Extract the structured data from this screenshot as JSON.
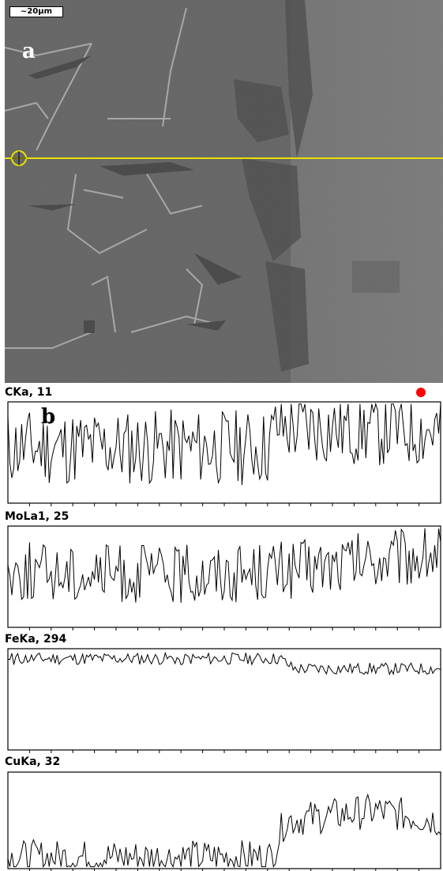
{
  "panel_a": {
    "label": "a",
    "scale_bar": "~20µm"
  },
  "panel_b": {
    "label": "b",
    "marker_color": "#ff0000"
  },
  "colors": {
    "scan_line": "#e8e000",
    "profile_line": "#000000"
  },
  "chart_data": [
    {
      "type": "line",
      "title": "CKa, 11",
      "trend": [
        [
          0,
          0.55
        ],
        [
          0.6,
          0.55
        ],
        [
          0.62,
          0.75
        ],
        [
          1.0,
          0.72
        ]
      ],
      "noise": 0.38,
      "seed": 11
    },
    {
      "type": "line",
      "title": "MoLa1, 25",
      "trend": [
        [
          0,
          0.55
        ],
        [
          0.4,
          0.52
        ],
        [
          0.7,
          0.58
        ],
        [
          1.0,
          0.72
        ]
      ],
      "noise": 0.3,
      "seed": 25
    },
    {
      "type": "line",
      "title": "FeKa, 294",
      "trend": [
        [
          0,
          0.9
        ],
        [
          0.63,
          0.9
        ],
        [
          0.66,
          0.8
        ],
        [
          1.0,
          0.8
        ]
      ],
      "noise": 0.06,
      "seed": 294
    },
    {
      "type": "line",
      "title": "CuKa, 32",
      "trend": [
        [
          0,
          0.12
        ],
        [
          0.61,
          0.12
        ],
        [
          0.64,
          0.5
        ],
        [
          0.85,
          0.6
        ],
        [
          1.0,
          0.5
        ]
      ],
      "noise": 0.18,
      "seed": 32
    }
  ]
}
